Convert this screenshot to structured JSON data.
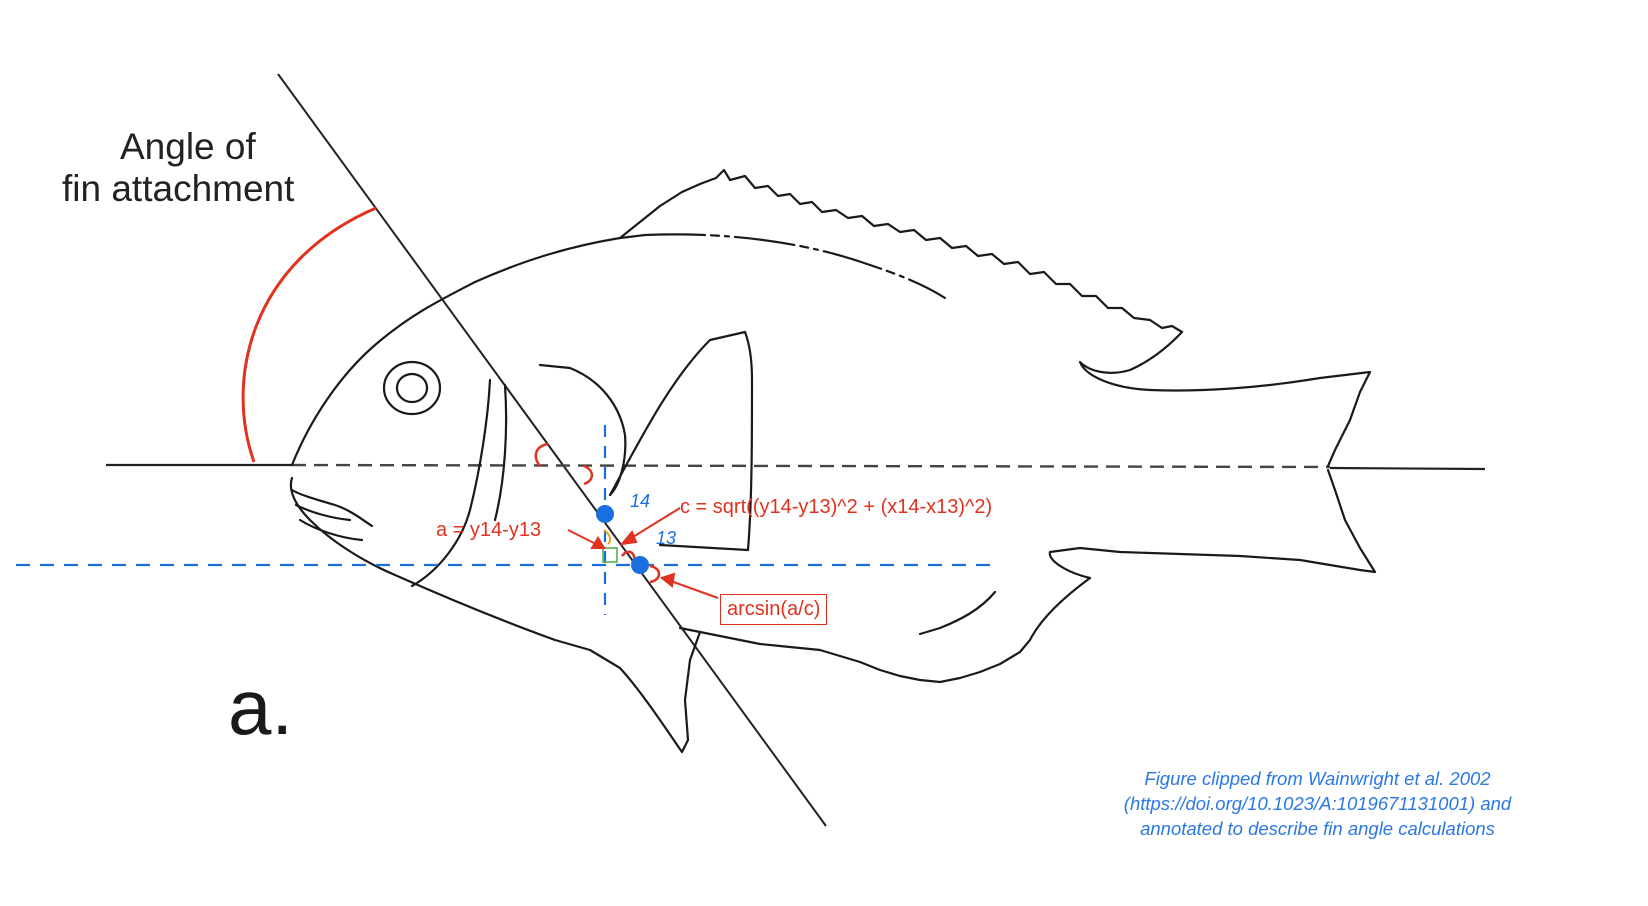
{
  "title": {
    "line1": "Angle of",
    "line2": "fin attachment"
  },
  "panel_letter": "a.",
  "annotations": {
    "c_formula": "c = sqrt((y14-y13)^2 + (x14-x13)^2)",
    "a_formula": "a = y14-y13",
    "arcsin": "arcsin(a/c)"
  },
  "points": {
    "p14": "14",
    "p13": "13"
  },
  "credit": {
    "line1": "Figure clipped from Wainwright et al. 2002",
    "line2": "(https://doi.org/10.1023/A:1019671131001) and",
    "line3": "annotated to describe fin angle calculations"
  },
  "colors": {
    "outline": "#1a1a1a",
    "annotation_red": "#e0321f",
    "guide_blue": "#1a6fe0",
    "credit_blue": "#2a78e4",
    "right_angle_green": "#55b24a",
    "angle_orange": "#f0a020"
  }
}
